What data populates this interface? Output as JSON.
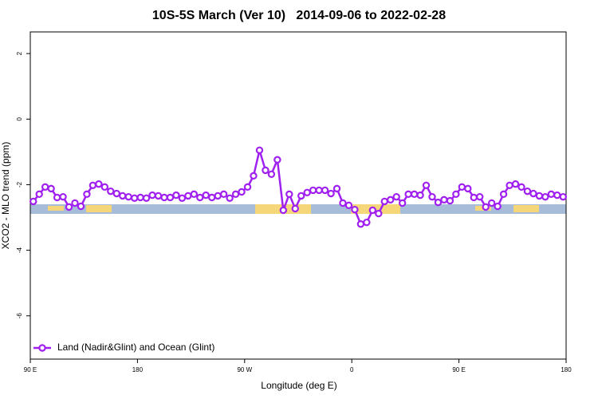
{
  "chart_data": {
    "type": "line",
    "title": "10S-5S March (Ver 10)   2014-09-06 to 2022-02-28",
    "xlabel": "Longitude (deg E)",
    "ylabel": "XCO2 - MLO trend (ppm)",
    "xlim": [
      90,
      540
    ],
    "ylim": [
      -7.32,
      2.66
    ],
    "xticks": [
      {
        "value": 90,
        "label": "90 E"
      },
      180,
      {
        "value": 270,
        "label": "90 W"
      },
      {
        "value": 360,
        "label": "0"
      },
      {
        "value": 450,
        "label": "90 E"
      },
      {
        "value": 540,
        "label": "180"
      }
    ],
    "yticks": [
      2,
      0,
      -2,
      -4,
      -6
    ],
    "legend": "bottomleft",
    "x": [
      92.5,
      97.5,
      102.5,
      107.5,
      112.5,
      117.5,
      122.5,
      127.5,
      132.5,
      137.5,
      142.5,
      147.5,
      152.5,
      157.5,
      162.5,
      167.5,
      172.5,
      177.5,
      182.5,
      187.5,
      192.5,
      197.5,
      202.5,
      207.5,
      212.5,
      217.5,
      222.5,
      227.5,
      232.5,
      237.5,
      242.5,
      247.5,
      252.5,
      257.5,
      262.5,
      267.5,
      272.5,
      277.5,
      282.5,
      287.5,
      292.5,
      297.5,
      302.5,
      307.5,
      312.5,
      317.5,
      322.5,
      327.5,
      332.5,
      337.5,
      342.5,
      347.5,
      352.5,
      357.5,
      362.5,
      367.5,
      372.5,
      377.5,
      382.5,
      387.5,
      392.5,
      397.5,
      402.5,
      407.5,
      412.5,
      417.5,
      422.5,
      427.5,
      432.5,
      437.5,
      442.5,
      447.5,
      452.5,
      457.5,
      462.5,
      467.5,
      472.5,
      477.5,
      482.5,
      487.5,
      492.5,
      497.5,
      502.5,
      507.5,
      512.5,
      517.5,
      522.5,
      527.5,
      532.5,
      537.5
    ],
    "series": [
      {
        "name": "Land (Nadir&Glint) and Ocean (Glint)",
        "color": "#a020f0",
        "values": [
          -2.51,
          -2.29,
          -2.07,
          -2.12,
          -2.39,
          -2.37,
          -2.68,
          -2.56,
          -2.66,
          -2.29,
          -2.02,
          -1.98,
          -2.07,
          -2.2,
          -2.27,
          -2.34,
          -2.37,
          -2.41,
          -2.39,
          -2.41,
          -2.32,
          -2.34,
          -2.39,
          -2.39,
          -2.32,
          -2.41,
          -2.34,
          -2.29,
          -2.39,
          -2.32,
          -2.39,
          -2.34,
          -2.29,
          -2.41,
          -2.29,
          -2.22,
          -2.07,
          -1.73,
          -0.95,
          -1.56,
          -1.68,
          -1.24,
          -2.78,
          -2.29,
          -2.73,
          -2.34,
          -2.24,
          -2.17,
          -2.17,
          -2.17,
          -2.27,
          -2.12,
          -2.56,
          -2.63,
          -2.76,
          -3.2,
          -3.15,
          -2.78,
          -2.88,
          -2.51,
          -2.46,
          -2.37,
          -2.56,
          -2.29,
          -2.29,
          -2.32,
          -2.02,
          -2.37,
          -2.54,
          -2.46,
          -2.49,
          -2.29,
          -2.07,
          -2.12,
          -2.39,
          -2.37,
          -2.68,
          -2.56,
          -2.66,
          -2.29,
          -2.02,
          -1.98,
          -2.07,
          -2.2,
          -2.27,
          -2.34,
          -2.37,
          -2.29,
          -2.32,
          -2.37
        ]
      }
    ]
  }
}
